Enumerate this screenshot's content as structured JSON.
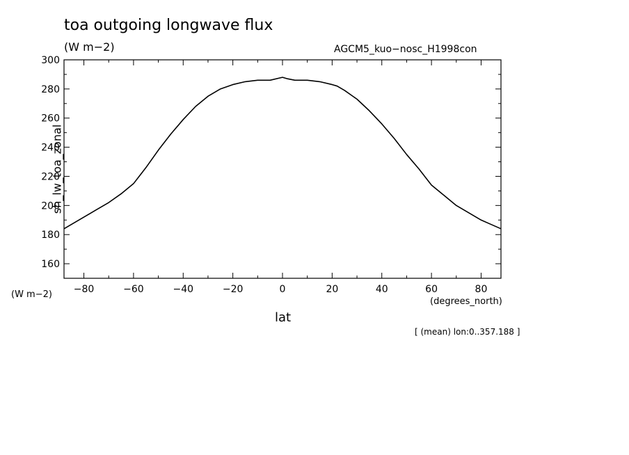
{
  "chart_data": {
    "type": "line",
    "title": "toa outgoing longwave flux",
    "units_label": "(W m−2)",
    "dataset_label": "AGCM5_kuo−nosc_H1998con",
    "ylabel": "sh_lw_toa_zonal",
    "y_units": "(W m−2)",
    "xlabel": "lat",
    "x_units": "(degrees_north)",
    "note": "[ (mean) lon:0..357.188 ]",
    "xlim": [
      -88,
      88
    ],
    "ylim": [
      150,
      300
    ],
    "x_ticks": [
      -80,
      -60,
      -40,
      -20,
      0,
      20,
      40,
      60,
      80
    ],
    "x_tick_labels": [
      "−80",
      "−60",
      "−40",
      "−20",
      "0",
      "20",
      "40",
      "60",
      "80"
    ],
    "y_ticks": [
      160,
      180,
      200,
      220,
      240,
      260,
      280,
      300
    ],
    "y_tick_labels": [
      "160",
      "180",
      "200",
      "220",
      "240",
      "260",
      "280",
      "300"
    ],
    "series": [
      {
        "x": [
          -88,
          -84,
          -80,
          -75,
          -70,
          -65,
          -60,
          -55,
          -50,
          -45,
          -40,
          -35,
          -30,
          -25,
          -20,
          -15,
          -10,
          -5,
          0,
          2,
          5,
          10,
          15,
          20,
          22,
          25,
          30,
          35,
          40,
          45,
          50,
          55,
          60,
          65,
          70,
          75,
          80,
          84,
          88
        ],
        "y": [
          184,
          188,
          192,
          197,
          202,
          208,
          215,
          226,
          238,
          249,
          259,
          268,
          275,
          280,
          283,
          285,
          286,
          286,
          288,
          287,
          286,
          286,
          285,
          283,
          282,
          279,
          273,
          265,
          256,
          246,
          235,
          225,
          214,
          207,
          200,
          195,
          190,
          187,
          184
        ]
      }
    ]
  }
}
